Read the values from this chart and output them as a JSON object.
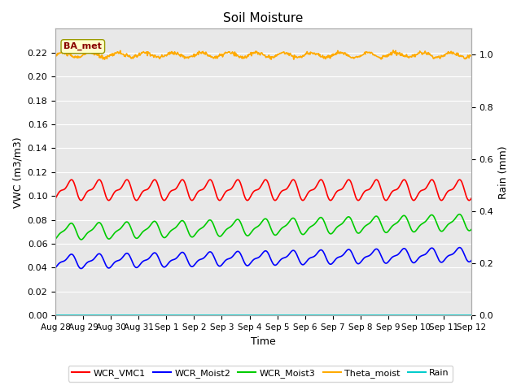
{
  "title": "Soil Moisture",
  "xlabel": "Time",
  "ylabel_left": "VWC (m3/m3)",
  "ylabel_right": "Rain (mm)",
  "ylim_left": [
    0.0,
    0.24
  ],
  "ylim_right": [
    0.0,
    1.1
  ],
  "yticks_left": [
    0.0,
    0.02,
    0.04,
    0.06,
    0.08,
    0.1,
    0.12,
    0.14,
    0.16,
    0.18,
    0.2,
    0.22
  ],
  "yticks_right_vals": [
    0.0,
    0.2,
    0.4,
    0.6,
    0.8,
    1.0
  ],
  "yticks_right_labels": [
    "0.0",
    "0.2",
    "0.4",
    "0.6",
    "0.8",
    "1.0"
  ],
  "xtick_labels": [
    "Aug 28",
    "Aug 29",
    "Aug 30",
    "Aug 31",
    "Sep 1",
    "Sep 2",
    "Sep 3",
    "Sep 4",
    "Sep 5",
    "Sep 6",
    "Sep 7",
    "Sep 8",
    "Sep 9",
    "Sep 10",
    "Sep 11",
    "Sep 12"
  ],
  "annotation_text": "BA_met",
  "colors": {
    "WCR_VMC1": "#ff0000",
    "WCR_Moist2": "#0000ff",
    "WCR_Moist3": "#00cc00",
    "Theta_moist": "#ffaa00",
    "Rain": "#00cccc"
  },
  "fig_facecolor": "#ffffff",
  "axes_facecolor": "#e8e8e8",
  "grid_color": "#ffffff",
  "legend_labels": [
    "WCR_VMC1",
    "WCR_Moist2",
    "WCR_Moist3",
    "Theta_moist",
    "Rain"
  ]
}
